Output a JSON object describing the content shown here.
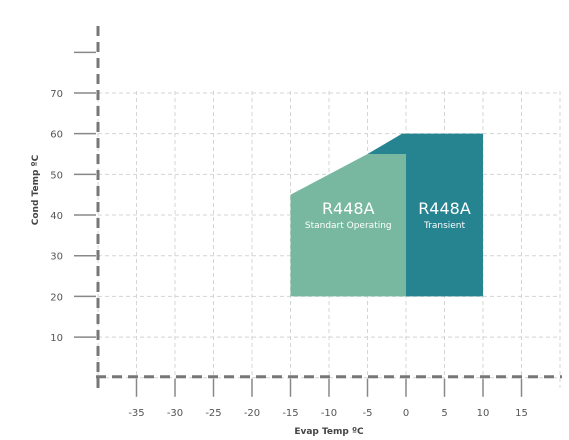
{
  "chart_data": {
    "type": "area",
    "xlabel": "Evap Temp ºC",
    "ylabel": "Cond Temp ºC",
    "xlim": [
      -40,
      20
    ],
    "ylim": [
      -3,
      70
    ],
    "x_ticks": [
      -35,
      -30,
      -25,
      -20,
      -15,
      -10,
      -5,
      0,
      5,
      10,
      15
    ],
    "y_ticks": [
      10,
      20,
      30,
      40,
      50,
      60,
      70
    ],
    "grid": true,
    "regions": [
      {
        "name": "R448A",
        "label": "Standart Operating",
        "color": "#79b8a0",
        "points": [
          [
            -15,
            20
          ],
          [
            -15,
            45
          ],
          [
            -5,
            55
          ],
          [
            0,
            55
          ],
          [
            0,
            20
          ]
        ]
      },
      {
        "name": "R448A",
        "label": "Transient",
        "color": "#258490",
        "points": [
          [
            0,
            20
          ],
          [
            0,
            55
          ],
          [
            -5,
            55
          ],
          [
            -0.5,
            60
          ],
          [
            10,
            60
          ],
          [
            10,
            20
          ]
        ]
      }
    ]
  }
}
